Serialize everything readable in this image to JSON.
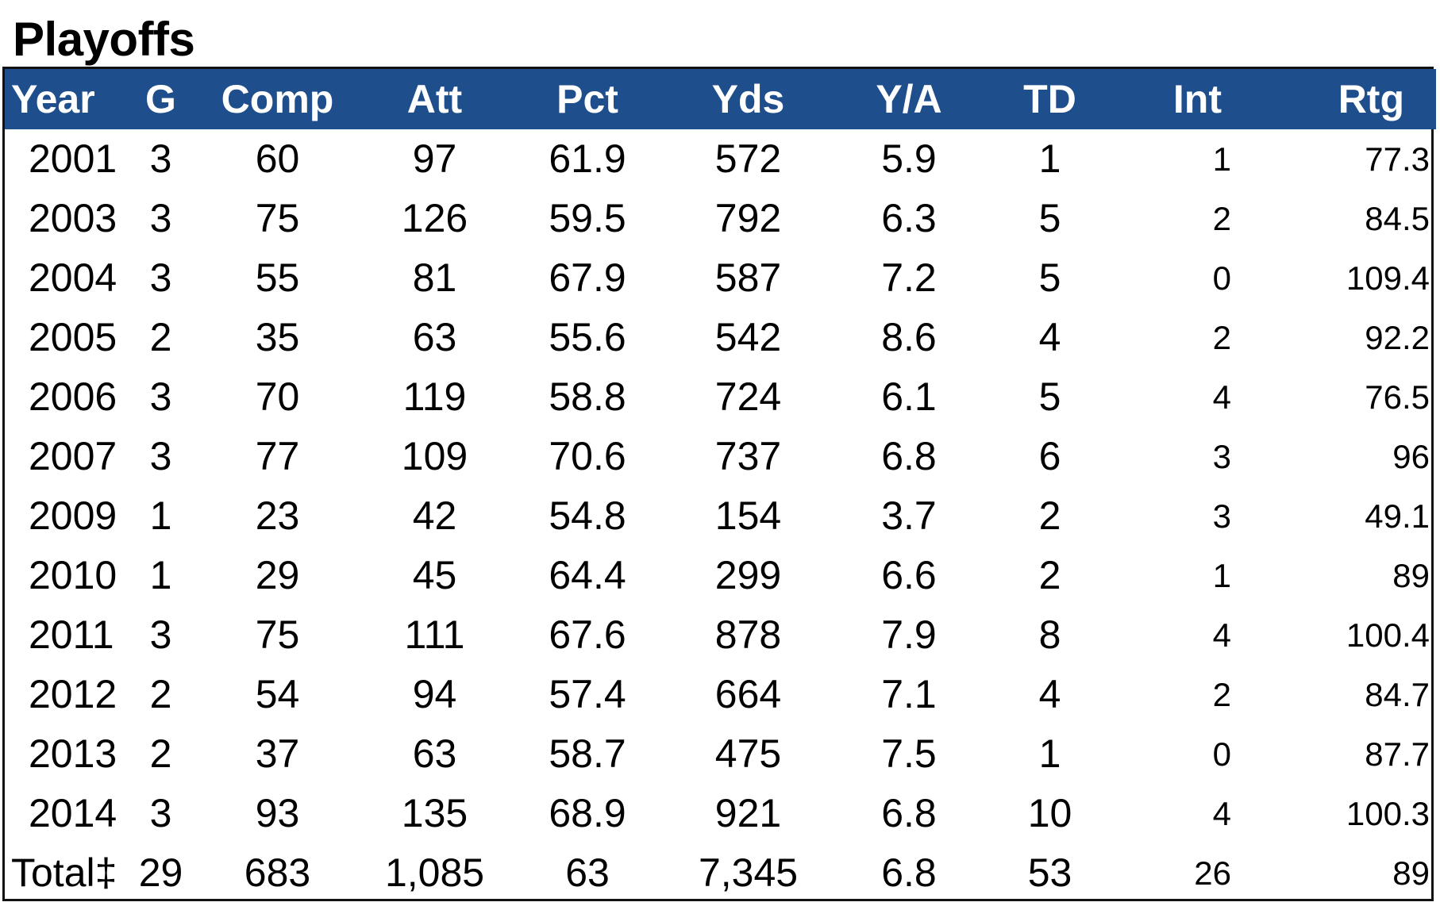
{
  "title": "Playoffs",
  "columns": [
    "Year",
    "G",
    "Comp",
    "Att",
    "Pct",
    "Yds",
    "Y/A",
    "TD",
    "Int",
    "Rtg"
  ],
  "rows": [
    [
      "2001",
      "3",
      "60",
      "97",
      "61.9",
      "572",
      "5.9",
      "1",
      "1",
      "77.3"
    ],
    [
      "2003",
      "3",
      "75",
      "126",
      "59.5",
      "792",
      "6.3",
      "5",
      "2",
      "84.5"
    ],
    [
      "2004",
      "3",
      "55",
      "81",
      "67.9",
      "587",
      "7.2",
      "5",
      "0",
      "109.4"
    ],
    [
      "2005",
      "2",
      "35",
      "63",
      "55.6",
      "542",
      "8.6",
      "4",
      "2",
      "92.2"
    ],
    [
      "2006",
      "3",
      "70",
      "119",
      "58.8",
      "724",
      "6.1",
      "5",
      "4",
      "76.5"
    ],
    [
      "2007",
      "3",
      "77",
      "109",
      "70.6",
      "737",
      "6.8",
      "6",
      "3",
      "96"
    ],
    [
      "2009",
      "1",
      "23",
      "42",
      "54.8",
      "154",
      "3.7",
      "2",
      "3",
      "49.1"
    ],
    [
      "2010",
      "1",
      "29",
      "45",
      "64.4",
      "299",
      "6.6",
      "2",
      "1",
      "89"
    ],
    [
      "2011",
      "3",
      "75",
      "111",
      "67.6",
      "878",
      "7.9",
      "8",
      "4",
      "100.4"
    ],
    [
      "2012",
      "2",
      "54",
      "94",
      "57.4",
      "664",
      "7.1",
      "4",
      "2",
      "84.7"
    ],
    [
      "2013",
      "2",
      "37",
      "63",
      "58.7",
      "475",
      "7.5",
      "1",
      "0",
      "87.7"
    ],
    [
      "2014",
      "3",
      "93",
      "135",
      "68.9",
      "921",
      "6.8",
      "10",
      "4",
      "100.3"
    ]
  ],
  "total": [
    "Total‡",
    "29",
    "683",
    "1,085",
    "63",
    "7,345",
    "6.8",
    "53",
    "26",
    "89"
  ],
  "colors": {
    "header_background": "#1f4e8c",
    "header_text": "#ffffff",
    "border": "#111111"
  }
}
